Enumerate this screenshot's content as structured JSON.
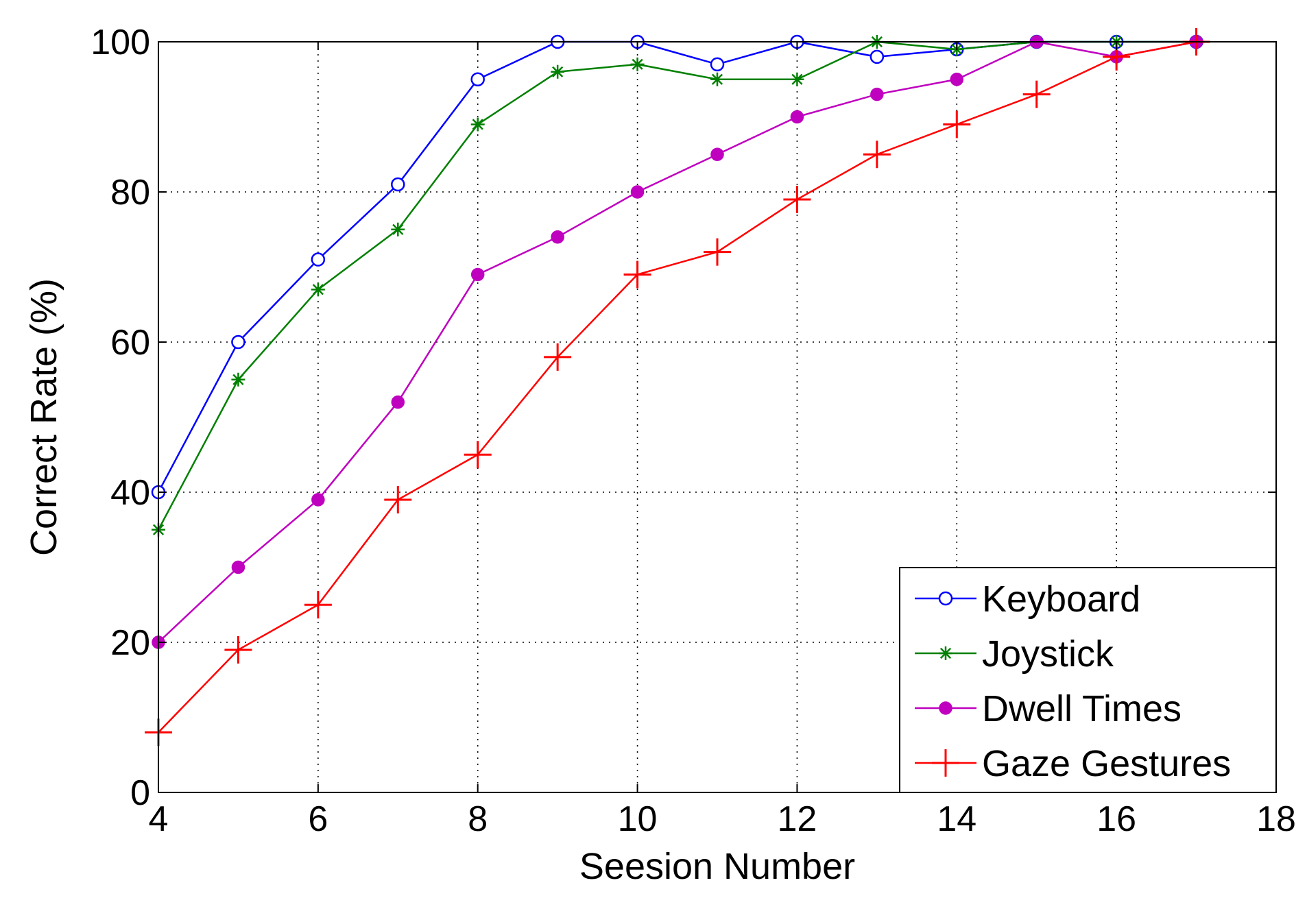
{
  "chart_data": {
    "type": "line",
    "title": "",
    "xlabel": "Seesion Number",
    "ylabel": "Correct Rate (%)",
    "xlim": [
      4,
      18
    ],
    "ylim": [
      0,
      100
    ],
    "xticks": [
      4,
      6,
      8,
      10,
      12,
      14,
      16,
      18
    ],
    "yticks": [
      0,
      20,
      40,
      60,
      80,
      100
    ],
    "grid": true,
    "legend_position": "bottom-right",
    "series": [
      {
        "name": "Keyboard",
        "color": "#0000ff",
        "marker": "circle-open",
        "x": [
          4,
          5,
          6,
          7,
          8,
          9,
          10,
          11,
          12,
          13,
          14,
          15,
          16,
          17
        ],
        "y": [
          40,
          60,
          71,
          81,
          95,
          100,
          100,
          97,
          100,
          98,
          99,
          100,
          100,
          100
        ]
      },
      {
        "name": "Joystick",
        "color": "#008000",
        "marker": "asterisk",
        "x": [
          4,
          5,
          6,
          7,
          8,
          9,
          10,
          11,
          12,
          13,
          14,
          15,
          16,
          17
        ],
        "y": [
          35,
          55,
          67,
          75,
          89,
          96,
          97,
          95,
          95,
          100,
          99,
          100,
          100,
          100
        ]
      },
      {
        "name": "Dwell Times",
        "color": "#bf00bf",
        "marker": "circle-filled",
        "x": [
          4,
          5,
          6,
          7,
          8,
          9,
          10,
          11,
          12,
          13,
          14,
          15,
          16,
          17
        ],
        "y": [
          20,
          30,
          39,
          52,
          69,
          74,
          80,
          85,
          90,
          93,
          95,
          100,
          98,
          100
        ]
      },
      {
        "name": "Gaze Gestures",
        "color": "#ff0000",
        "marker": "plus",
        "x": [
          4,
          5,
          6,
          7,
          8,
          9,
          10,
          11,
          12,
          13,
          14,
          15,
          16,
          17
        ],
        "y": [
          8,
          19,
          25,
          39,
          45,
          58,
          69,
          72,
          79,
          85,
          89,
          93,
          98,
          100
        ]
      }
    ]
  }
}
